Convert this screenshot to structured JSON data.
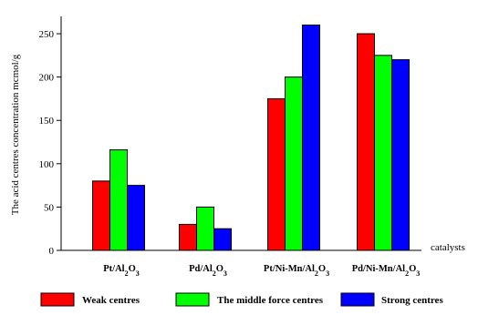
{
  "chart_data": {
    "type": "bar",
    "ylabel": "The acid centres concentration mcmol/g",
    "xlabel": "catalysts",
    "ylim": [
      0,
      270
    ],
    "yticks": [
      0,
      50,
      100,
      150,
      200,
      250
    ],
    "categories": [
      {
        "base": "Pt/Al",
        "sub1": "2",
        "mid": "O",
        "sub2": "3"
      },
      {
        "base": "Pd/Al",
        "sub1": "2",
        "mid": "O",
        "sub2": "3"
      },
      {
        "base": "Pt/Ni-Mn/Al",
        "sub1": "2",
        "mid": "O",
        "sub2": "3"
      },
      {
        "base": "Pd/Ni-Mn/Al",
        "sub1": "2",
        "mid": "O",
        "sub2": "3"
      }
    ],
    "series": [
      {
        "name": "Weak centres",
        "color": "#ff0000",
        "values": [
          80,
          30,
          175,
          250
        ]
      },
      {
        "name": "The middle force centres",
        "color": "#00ff00",
        "values": [
          116,
          50,
          200,
          225
        ]
      },
      {
        "name": "Strong centres",
        "color": "#0000ff",
        "values": [
          75,
          25,
          260,
          220
        ]
      }
    ],
    "grid": false,
    "legend": "bottom"
  }
}
